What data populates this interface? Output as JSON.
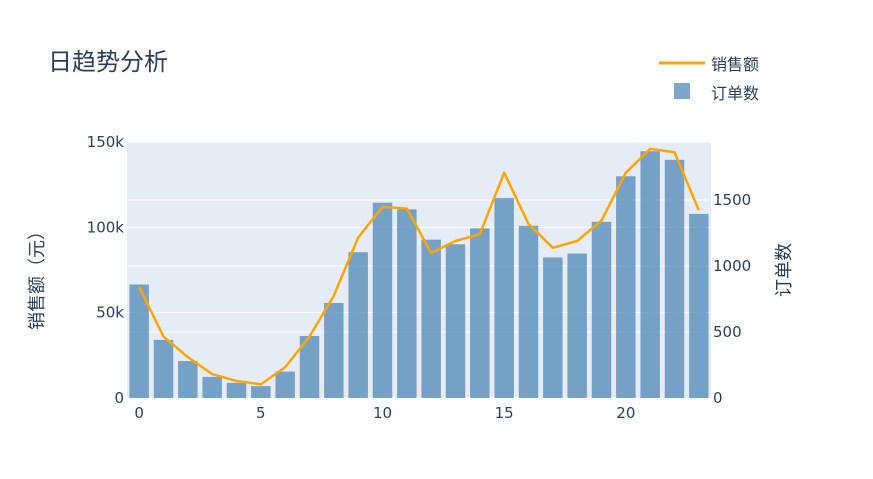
{
  "chart_data": {
    "type": "bar+line",
    "title": "日趋势分析",
    "x": [
      0,
      1,
      2,
      3,
      4,
      5,
      6,
      7,
      8,
      9,
      10,
      11,
      12,
      13,
      14,
      15,
      16,
      17,
      18,
      19,
      20,
      21,
      22,
      23
    ],
    "x_ticks": [
      0,
      5,
      10,
      15,
      20
    ],
    "x_range": [
      -0.5,
      23.5
    ],
    "y_left": {
      "label": "销售额（元）",
      "range": [
        0,
        150000
      ],
      "ticks": [
        0,
        50000,
        100000,
        150000
      ],
      "tick_labels": [
        "0",
        "50k",
        "100k",
        "150k"
      ]
    },
    "y_right": {
      "label": "订单数",
      "range": [
        0,
        1940
      ],
      "ticks": [
        0,
        500,
        1000,
        1500
      ],
      "tick_labels": [
        "0",
        "500",
        "1000",
        "1500"
      ]
    },
    "series": [
      {
        "name": "销售额",
        "kind": "line",
        "axis": "left",
        "color": "#FFA500",
        "values": [
          65000,
          36000,
          24000,
          14000,
          10000,
          8000,
          18000,
          36000,
          60000,
          94000,
          112000,
          111000,
          85000,
          92000,
          96000,
          132000,
          102000,
          88000,
          92000,
          104000,
          132000,
          146000,
          144000,
          110000
        ]
      },
      {
        "name": "订单数",
        "kind": "bar",
        "axis": "right",
        "color": "#4682B4",
        "values": [
          860,
          440,
          280,
          160,
          115,
          90,
          200,
          470,
          720,
          1105,
          1480,
          1430,
          1200,
          1165,
          1285,
          1515,
          1305,
          1065,
          1095,
          1335,
          1680,
          1870,
          1805,
          1395
        ]
      }
    ],
    "legend": "top-right",
    "grid": true
  },
  "colors": {
    "plot_bg": "#E5ECF6",
    "grid": "#ffffff",
    "text": "#2a3f5f"
  }
}
